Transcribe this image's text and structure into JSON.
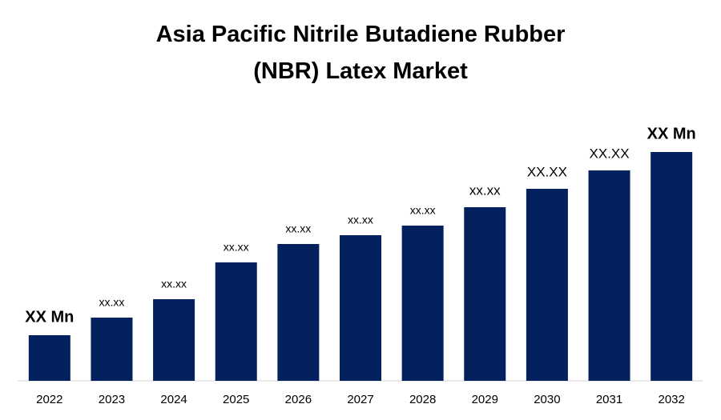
{
  "chart_data": {
    "type": "bar",
    "title": "Asia Pacific Nitrile Butadiene Rubber (NBR) Latex Market",
    "categories": [
      "2022",
      "2023",
      "2024",
      "2025",
      "2026",
      "2027",
      "2028",
      "2029",
      "2030",
      "2031",
      "2032"
    ],
    "values": [
      57,
      79,
      102,
      148,
      171,
      182,
      194,
      217,
      240,
      263,
      286
    ],
    "value_labels": [
      "XX Mn",
      "xx.xx",
      "xx.xx",
      "xx.xx",
      "xx.xx",
      "xx.xx",
      "xx.xx",
      "xx.xx",
      "XX.XX",
      "XX.XX",
      "XX Mn"
    ],
    "color": "#03215e",
    "ylim": [
      0,
      300
    ]
  }
}
